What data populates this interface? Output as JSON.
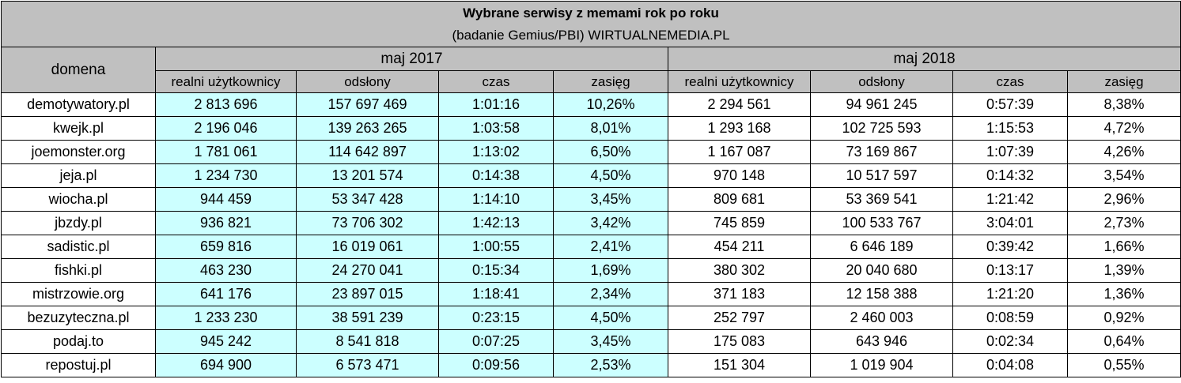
{
  "title": "Wybrane serwisy z memami rok po roku",
  "subtitle": "(badanie Gemius/PBI) WIRTUALNEMEDIA.PL",
  "domain_header": "domena",
  "years": [
    "maj 2017",
    "maj 2018"
  ],
  "columns": [
    "realni użytkownicy",
    "odsłony",
    "czas",
    "zasięg"
  ],
  "colors": {
    "header_bg": "#c0c0c0",
    "highlight_2017": "#ccffff"
  },
  "rows": [
    {
      "domain": "demotywatory.pl",
      "y2017": [
        "2 813 696",
        "157 697 469",
        "1:01:16",
        "10,26%"
      ],
      "y2018": [
        "2 294 561",
        "94 961 245",
        "0:57:39",
        "8,38%"
      ]
    },
    {
      "domain": "kwejk.pl",
      "y2017": [
        "2 196 046",
        "139 263 265",
        "1:03:58",
        "8,01%"
      ],
      "y2018": [
        "1 293 168",
        "102 725 593",
        "1:15:53",
        "4,72%"
      ]
    },
    {
      "domain": "joemonster.org",
      "y2017": [
        "1 781 061",
        "114 642 897",
        "1:13:02",
        "6,50%"
      ],
      "y2018": [
        "1 167 087",
        "73 169 867",
        "1:07:39",
        "4,26%"
      ]
    },
    {
      "domain": "jeja.pl",
      "y2017": [
        "1 234 730",
        "13 201 574",
        "0:14:38",
        "4,50%"
      ],
      "y2018": [
        "970 148",
        "10 517 597",
        "0:14:32",
        "3,54%"
      ]
    },
    {
      "domain": "wiocha.pl",
      "y2017": [
        "944 459",
        "53 347 428",
        "1:14:10",
        "3,45%"
      ],
      "y2018": [
        "809 681",
        "53 369 541",
        "1:21:42",
        "2,96%"
      ]
    },
    {
      "domain": "jbzdy.pl",
      "y2017": [
        "936 821",
        "73 706 302",
        "1:42:13",
        "3,42%"
      ],
      "y2018": [
        "745 859",
        "100 533 767",
        "3:04:01",
        "2,73%"
      ]
    },
    {
      "domain": "sadistic.pl",
      "y2017": [
        "659 816",
        "16 019 061",
        "1:00:55",
        "2,41%"
      ],
      "y2018": [
        "454 211",
        "6 646 189",
        "0:39:42",
        "1,66%"
      ]
    },
    {
      "domain": "fishki.pl",
      "y2017": [
        "463 230",
        "24 270 041",
        "0:15:34",
        "1,69%"
      ],
      "y2018": [
        "380 302",
        "20 040 680",
        "0:13:17",
        "1,39%"
      ]
    },
    {
      "domain": "mistrzowie.org",
      "y2017": [
        "641 176",
        "23 897 015",
        "1:18:41",
        "2,34%"
      ],
      "y2018": [
        "371 183",
        "12 158 388",
        "1:21:20",
        "1,36%"
      ]
    },
    {
      "domain": "bezuzyteczna.pl",
      "y2017": [
        "1 233 230",
        "38 591 239",
        "0:23:15",
        "4,50%"
      ],
      "y2018": [
        "252 797",
        "2 460 003",
        "0:08:59",
        "0,92%"
      ]
    },
    {
      "domain": "podaj.to",
      "y2017": [
        "945 242",
        "8 541 818",
        "0:07:25",
        "3,45%"
      ],
      "y2018": [
        "175 083",
        "643 946",
        "0:02:34",
        "0,64%"
      ]
    },
    {
      "domain": "repostuj.pl",
      "y2017": [
        "694 900",
        "6 573 471",
        "0:09:56",
        "2,53%"
      ],
      "y2018": [
        "151 304",
        "1 019 904",
        "0:04:08",
        "0,55%"
      ]
    }
  ]
}
